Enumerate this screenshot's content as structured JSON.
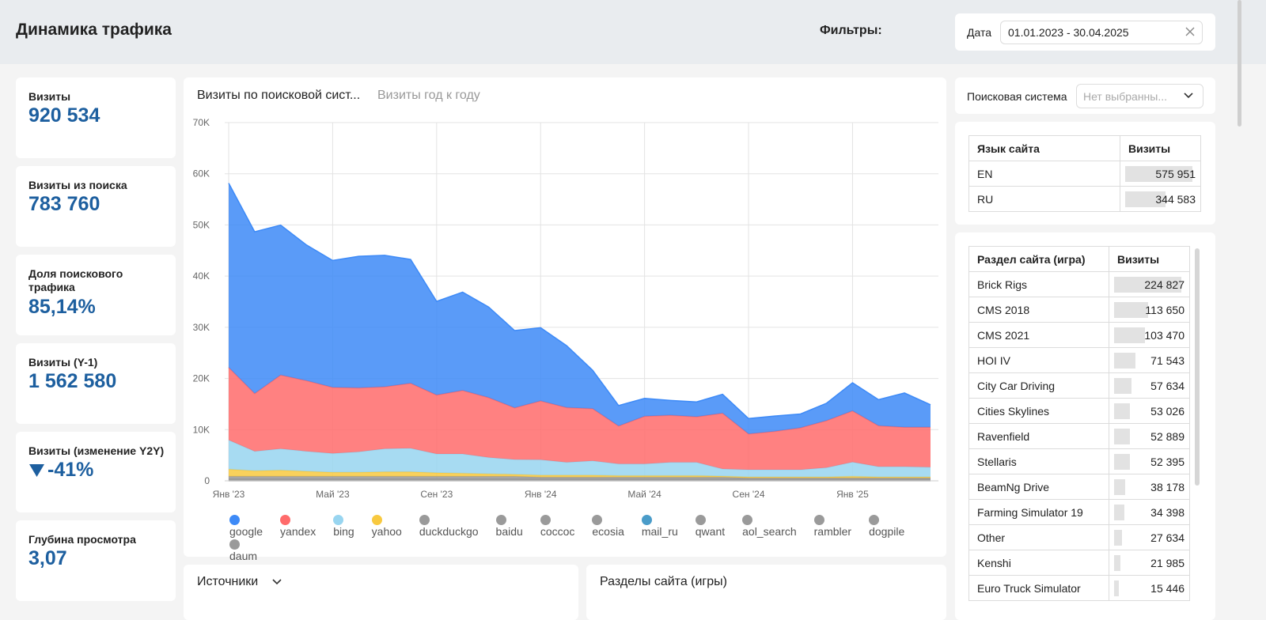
{
  "header": {
    "title": "Динамика трафика",
    "filters_label": "Фильтры:",
    "date_label": "Дата",
    "date_value": "01.01.2023 - 30.04.2025"
  },
  "kpis": [
    {
      "label": "Визиты",
      "value": "920 534"
    },
    {
      "label": "Визиты из поиска",
      "value": "783 760"
    },
    {
      "label": "Доля поискового трафика",
      "value": "85,14%"
    },
    {
      "label": "Визиты (Y-1)",
      "value": "1 562 580"
    },
    {
      "label": "Визиты (изменение Y2Y)",
      "value": "-41%"
    },
    {
      "label": "Глубина просмотра",
      "value": "3,07"
    }
  ],
  "chart_tabs": [
    "Визиты по поисковой сист...",
    "Визиты год к году"
  ],
  "chart_data": {
    "type": "area",
    "stacked": true,
    "grid": true,
    "categories": [
      "Янв '23",
      null,
      null,
      null,
      "Май '23",
      null,
      null,
      null,
      "Сен '23",
      null,
      null,
      null,
      "Янв '24",
      null,
      null,
      null,
      "Май '24",
      null,
      null,
      null,
      "Сен '24",
      null,
      null,
      null,
      "Янв '25",
      null,
      null,
      null
    ],
    "ylim": [
      0,
      70000
    ],
    "yticks": [
      0,
      {
        "value": 10000,
        "label": "10K"
      },
      {
        "value": 20000,
        "label": "20K"
      },
      {
        "value": 30000,
        "label": "30K"
      },
      {
        "value": 40000,
        "label": "40K"
      },
      {
        "value": 50000,
        "label": "50K"
      },
      {
        "value": 60000,
        "label": "60K"
      },
      {
        "value": 70000,
        "label": "70K"
      }
    ],
    "series": [
      {
        "name": "google",
        "color": "#3d8af7",
        "values": [
          36000,
          31600,
          29300,
          26500,
          24800,
          25700,
          25700,
          24200,
          18300,
          19200,
          17700,
          15100,
          14300,
          12100,
          7500,
          4000,
          3500,
          2900,
          2900,
          3700,
          3000,
          3000,
          2700,
          3400,
          5500,
          5100,
          6700,
          4400
        ]
      },
      {
        "name": "yandex",
        "color": "#ff6b6b",
        "values": [
          14200,
          11300,
          14400,
          13800,
          12900,
          12500,
          12100,
          12700,
          11500,
          12400,
          11700,
          10100,
          11500,
          10700,
          10200,
          7400,
          9300,
          9200,
          8900,
          10900,
          7000,
          7500,
          8200,
          9200,
          10000,
          8000,
          7700,
          7800
        ]
      },
      {
        "name": "bing",
        "color": "#98d5f0",
        "values": [
          5700,
          3800,
          4200,
          3900,
          3700,
          4000,
          4500,
          4600,
          3700,
          3800,
          3200,
          2900,
          3000,
          2500,
          2800,
          2300,
          2300,
          2600,
          2600,
          1400,
          1400,
          1400,
          1400,
          1800,
          2800,
          2000,
          2000,
          1900
        ]
      },
      {
        "name": "yahoo",
        "color": "#f8c93f",
        "values": [
          1400,
          1100,
          1200,
          1000,
          800,
          800,
          900,
          900,
          700,
          600,
          500,
          400,
          400,
          400,
          400,
          300,
          300,
          300,
          300,
          200,
          200,
          200,
          200,
          200,
          300,
          200,
          200,
          200
        ]
      },
      {
        "name": "duckduckgo",
        "color": "#9a9a9a",
        "values": [
          500,
          500,
          500,
          500,
          500,
          500,
          500,
          500,
          500,
          500,
          500,
          500,
          350,
          350,
          350,
          350,
          350,
          350,
          350,
          350,
          200,
          200,
          200,
          200,
          200,
          200,
          200,
          200
        ]
      },
      {
        "name": "baidu",
        "color": "#9a9a9a",
        "values": [
          150,
          150,
          150,
          150,
          150,
          150,
          150,
          150,
          150,
          150,
          150,
          150,
          150,
          150,
          150,
          150,
          150,
          150,
          150,
          150,
          150,
          150,
          150,
          150,
          150,
          150,
          150,
          150
        ]
      },
      {
        "name": "coccoc",
        "color": "#9a9a9a",
        "values": [
          50,
          50,
          50,
          50,
          50,
          50,
          50,
          50,
          50,
          50,
          50,
          50,
          50,
          50,
          50,
          50,
          50,
          50,
          50,
          50,
          50,
          50,
          50,
          50,
          50,
          50,
          50,
          50
        ]
      },
      {
        "name": "ecosia",
        "color": "#9a9a9a",
        "values": [
          40,
          40,
          40,
          40,
          40,
          40,
          40,
          40,
          40,
          40,
          40,
          40,
          40,
          40,
          40,
          40,
          40,
          40,
          40,
          40,
          40,
          40,
          40,
          40,
          40,
          40,
          40,
          40
        ]
      },
      {
        "name": "mail_ru",
        "color": "#4a9cc9",
        "values": [
          30,
          30,
          30,
          30,
          30,
          30,
          30,
          30,
          30,
          30,
          30,
          30,
          30,
          30,
          30,
          30,
          30,
          30,
          30,
          30,
          30,
          30,
          30,
          30,
          30,
          30,
          30,
          30
        ]
      },
      {
        "name": "qwant",
        "color": "#9a9a9a",
        "values": [
          30,
          30,
          30,
          30,
          30,
          30,
          30,
          30,
          30,
          30,
          30,
          30,
          30,
          30,
          30,
          30,
          30,
          30,
          30,
          30,
          30,
          30,
          30,
          30,
          30,
          30,
          30,
          30
        ]
      },
      {
        "name": "aol_search",
        "color": "#9a9a9a",
        "values": [
          20,
          20,
          20,
          20,
          20,
          20,
          20,
          20,
          20,
          20,
          20,
          20,
          20,
          20,
          20,
          20,
          20,
          20,
          20,
          20,
          20,
          20,
          20,
          20,
          20,
          20,
          20,
          20
        ]
      },
      {
        "name": "rambler",
        "color": "#9a9a9a",
        "values": [
          20,
          20,
          20,
          20,
          20,
          20,
          20,
          20,
          20,
          20,
          20,
          20,
          20,
          20,
          20,
          20,
          20,
          20,
          20,
          20,
          20,
          20,
          20,
          20,
          20,
          20,
          20,
          20
        ]
      },
      {
        "name": "dogpile",
        "color": "#9a9a9a",
        "values": [
          10,
          10,
          10,
          10,
          10,
          10,
          10,
          10,
          10,
          10,
          10,
          10,
          10,
          10,
          10,
          10,
          10,
          10,
          10,
          10,
          10,
          10,
          10,
          10,
          10,
          10,
          10,
          10
        ]
      },
      {
        "name": "daum",
        "color": "#9a9a9a",
        "values": [
          10,
          10,
          10,
          10,
          10,
          10,
          10,
          10,
          10,
          10,
          10,
          10,
          10,
          10,
          10,
          10,
          10,
          10,
          10,
          10,
          10,
          10,
          10,
          10,
          10,
          10,
          10,
          10
        ]
      }
    ]
  },
  "search_filter": {
    "label": "Поисковая система",
    "placeholder": "Нет выбранны..."
  },
  "language_table": {
    "columns": [
      "Язык сайта",
      "Визиты"
    ],
    "rows": [
      [
        "EN",
        "575 951"
      ],
      [
        "RU",
        "344 583"
      ]
    ]
  },
  "section_table": {
    "columns": [
      "Раздел сайта (игра)",
      "Визиты"
    ],
    "rows": [
      [
        "Brick Rigs",
        "224 827"
      ],
      [
        "CMS 2018",
        "113 650"
      ],
      [
        "CMS 2021",
        "103 470"
      ],
      [
        "HOI IV",
        "71 543"
      ],
      [
        "City Car Driving",
        "57 634"
      ],
      [
        "Cities Skylines",
        "53 026"
      ],
      [
        "Ravenfield",
        "52 889"
      ],
      [
        "Stellaris",
        "52 395"
      ],
      [
        "BeamNg Drive",
        "38 178"
      ],
      [
        "Farming Simulator 19",
        "34 398"
      ],
      [
        "Other",
        "27 634"
      ],
      [
        "Kenshi",
        "21 985"
      ],
      [
        "Euro Truck Simulator",
        "15 446"
      ]
    ]
  },
  "bottom_cards": {
    "sources": "Источники",
    "sections": "Разделы сайта (игры)"
  }
}
